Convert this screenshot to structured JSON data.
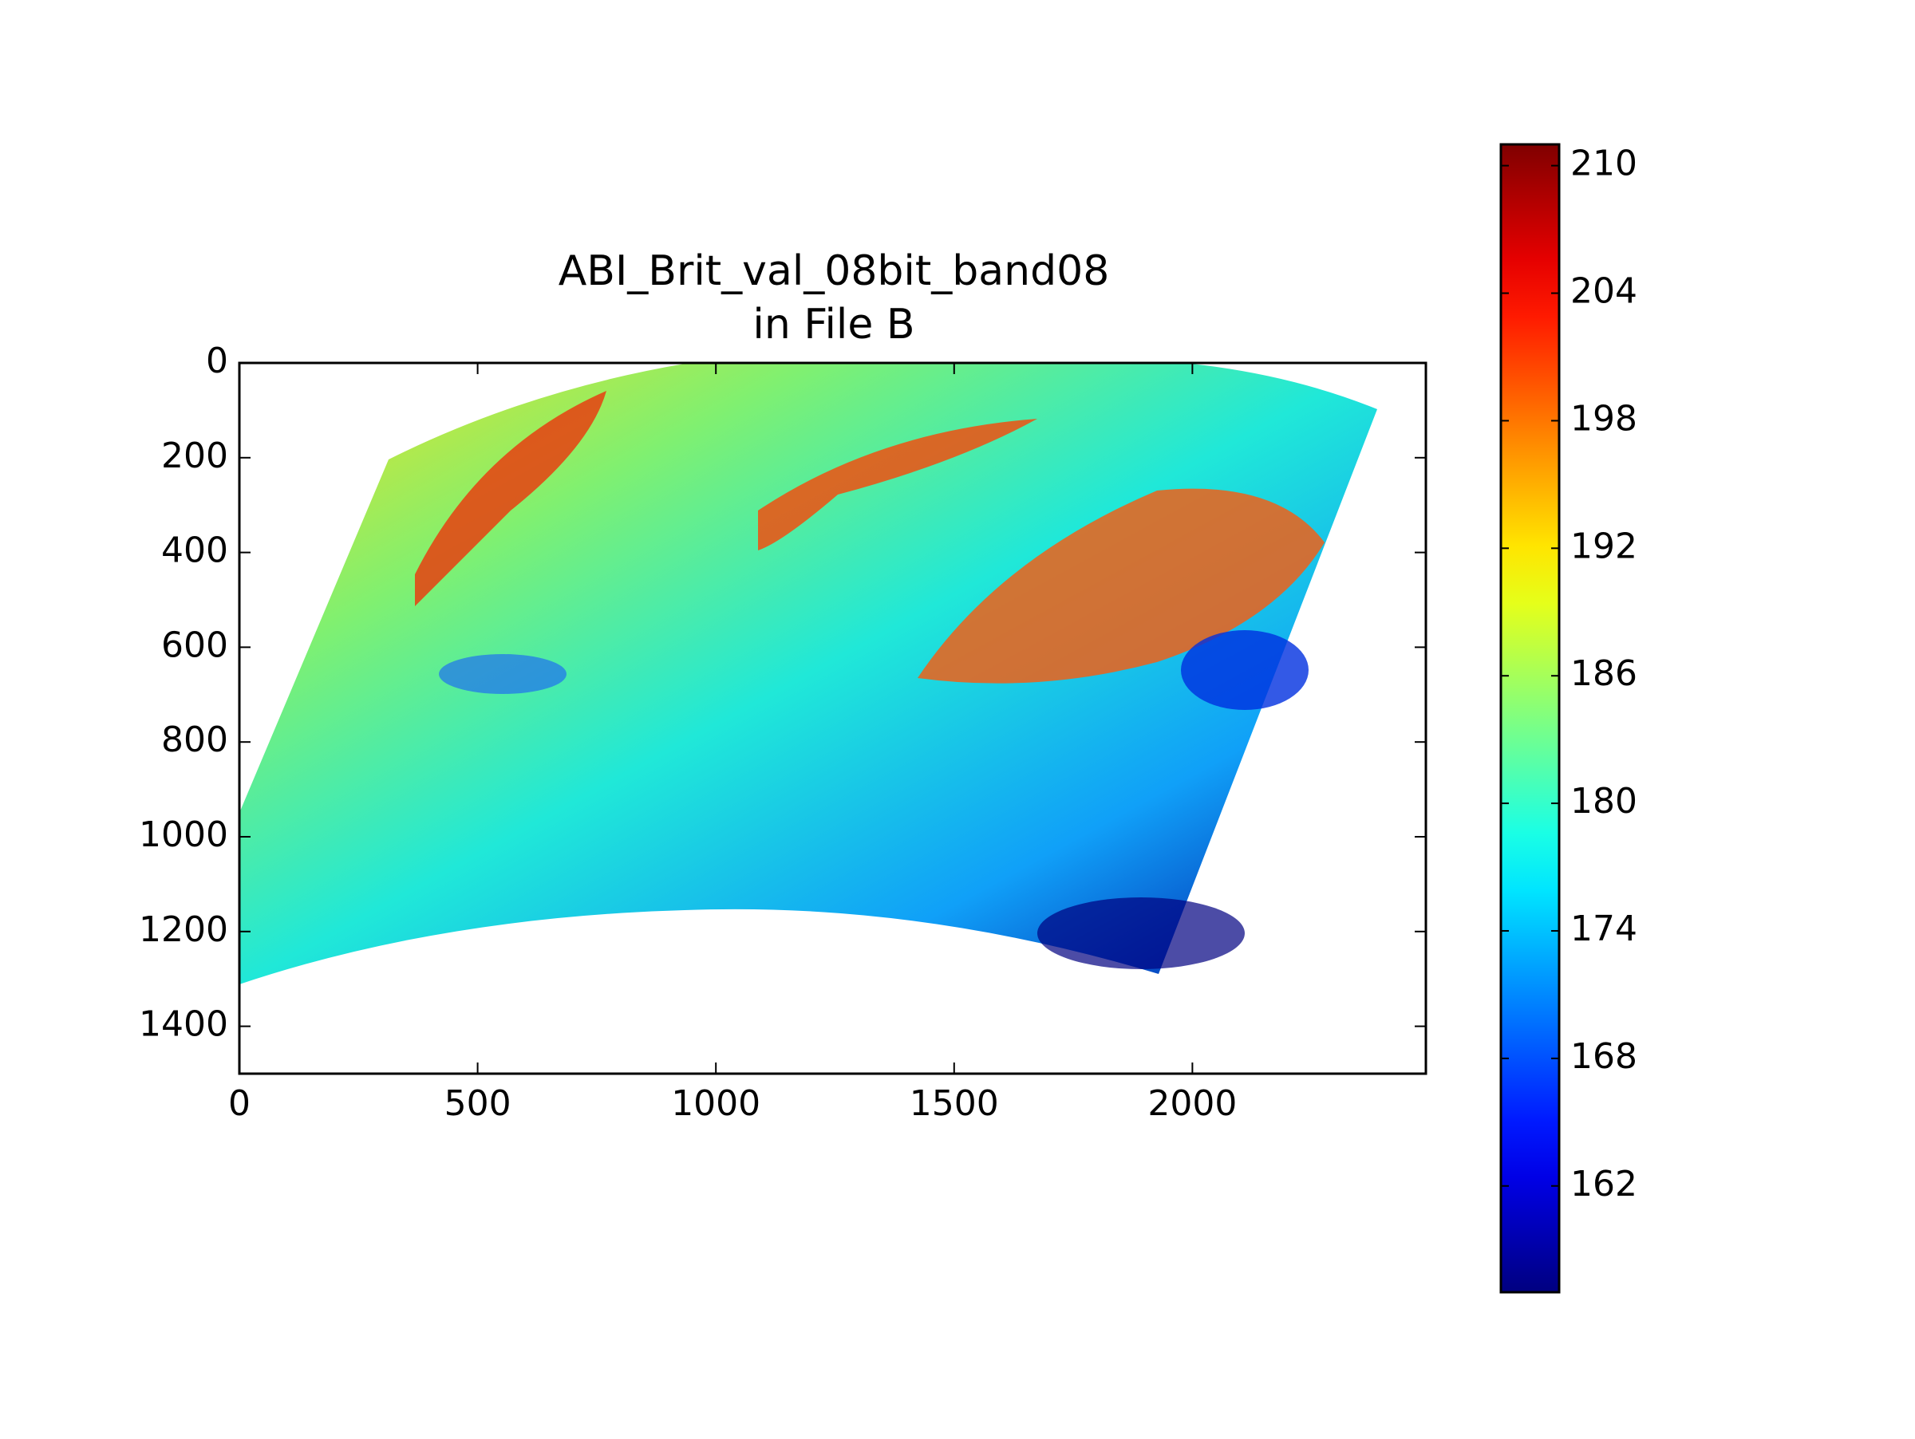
{
  "chart_data": {
    "type": "image",
    "title": "ABI_Brit_val_08bit_band08",
    "subtitle": "in File B",
    "xlim": [
      0,
      2490
    ],
    "xticks": [
      0,
      500,
      1000,
      1500,
      2000
    ],
    "ylim": [
      1500,
      0
    ],
    "yticks": [
      0,
      200,
      400,
      600,
      800,
      1000,
      1200,
      1400
    ],
    "colormap": "jet",
    "clim": [
      157,
      211
    ],
    "cticks": [
      162,
      168,
      174,
      180,
      186,
      192,
      198,
      204,
      210
    ]
  }
}
